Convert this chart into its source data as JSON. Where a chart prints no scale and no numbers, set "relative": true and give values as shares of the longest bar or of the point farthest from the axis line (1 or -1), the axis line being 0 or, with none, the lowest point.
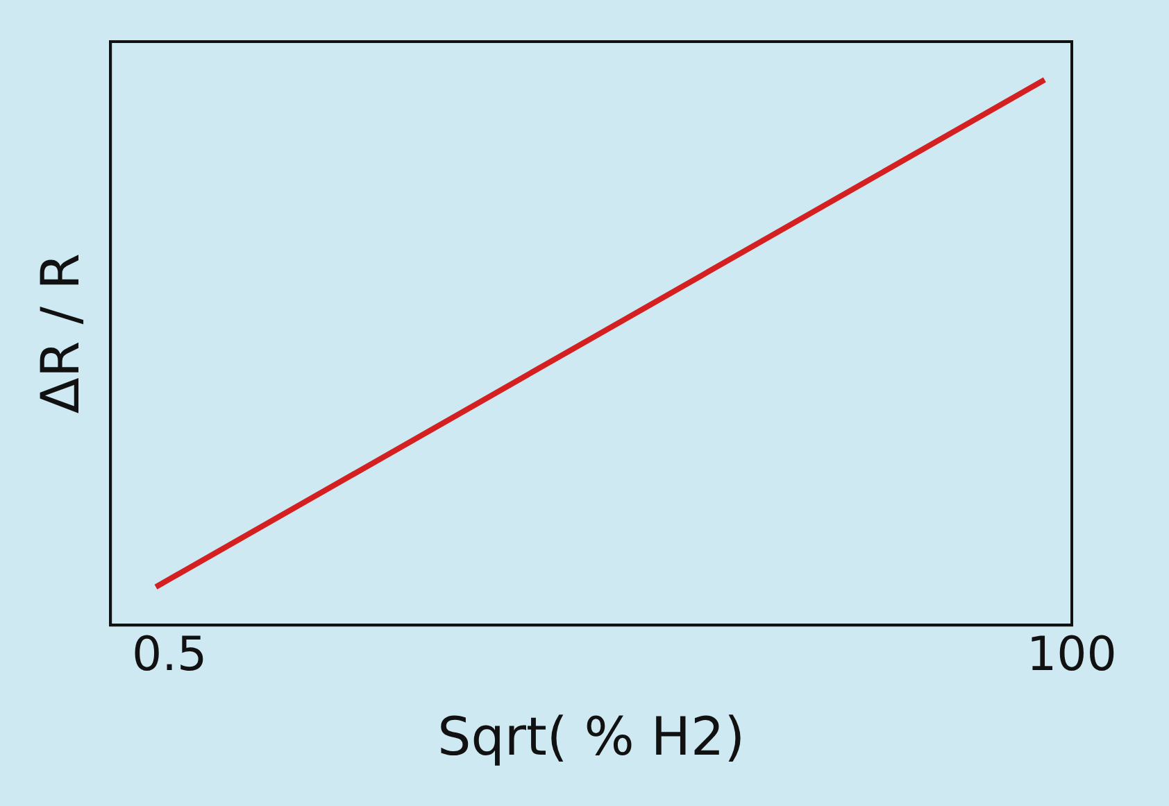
{
  "chart_data": {
    "type": "line",
    "xlabel": "Sqrt( % H2)",
    "ylabel": "ΔR / R",
    "relative": true,
    "x": [
      -1,
      97
    ],
    "series": [
      {
        "color": "#d42020",
        "values": [
          0.07,
          1
        ]
      }
    ],
    "xlim": [
      -6,
      100
    ],
    "xticks": [
      0.5,
      100
    ],
    "grid": false,
    "legend": false,
    "marker": "none",
    "line_style": "solid"
  }
}
